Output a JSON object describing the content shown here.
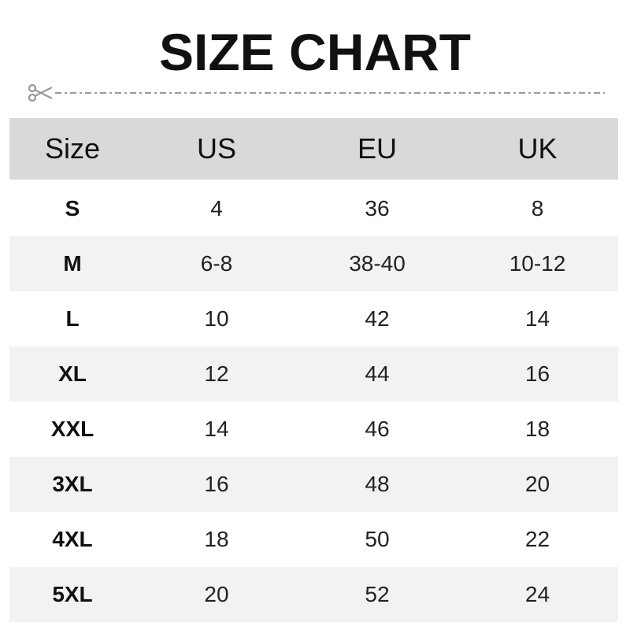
{
  "title": "SIZE CHART",
  "icons": {
    "cut": "scissors-icon"
  },
  "colors": {
    "header_bg": "#d9d9d9",
    "alt_row_bg": "#f2f2f2",
    "cutline": "#999999"
  },
  "table": {
    "headers": [
      "Size",
      "US",
      "EU",
      "UK"
    ],
    "rows": [
      [
        "S",
        "4",
        "36",
        "8"
      ],
      [
        "M",
        "6-8",
        "38-40",
        "10-12"
      ],
      [
        "L",
        "10",
        "42",
        "14"
      ],
      [
        "XL",
        "12",
        "44",
        "16"
      ],
      [
        "XXL",
        "14",
        "46",
        "18"
      ],
      [
        "3XL",
        "16",
        "48",
        "20"
      ],
      [
        "4XL",
        "18",
        "50",
        "22"
      ],
      [
        "5XL",
        "20",
        "52",
        "24"
      ]
    ]
  }
}
